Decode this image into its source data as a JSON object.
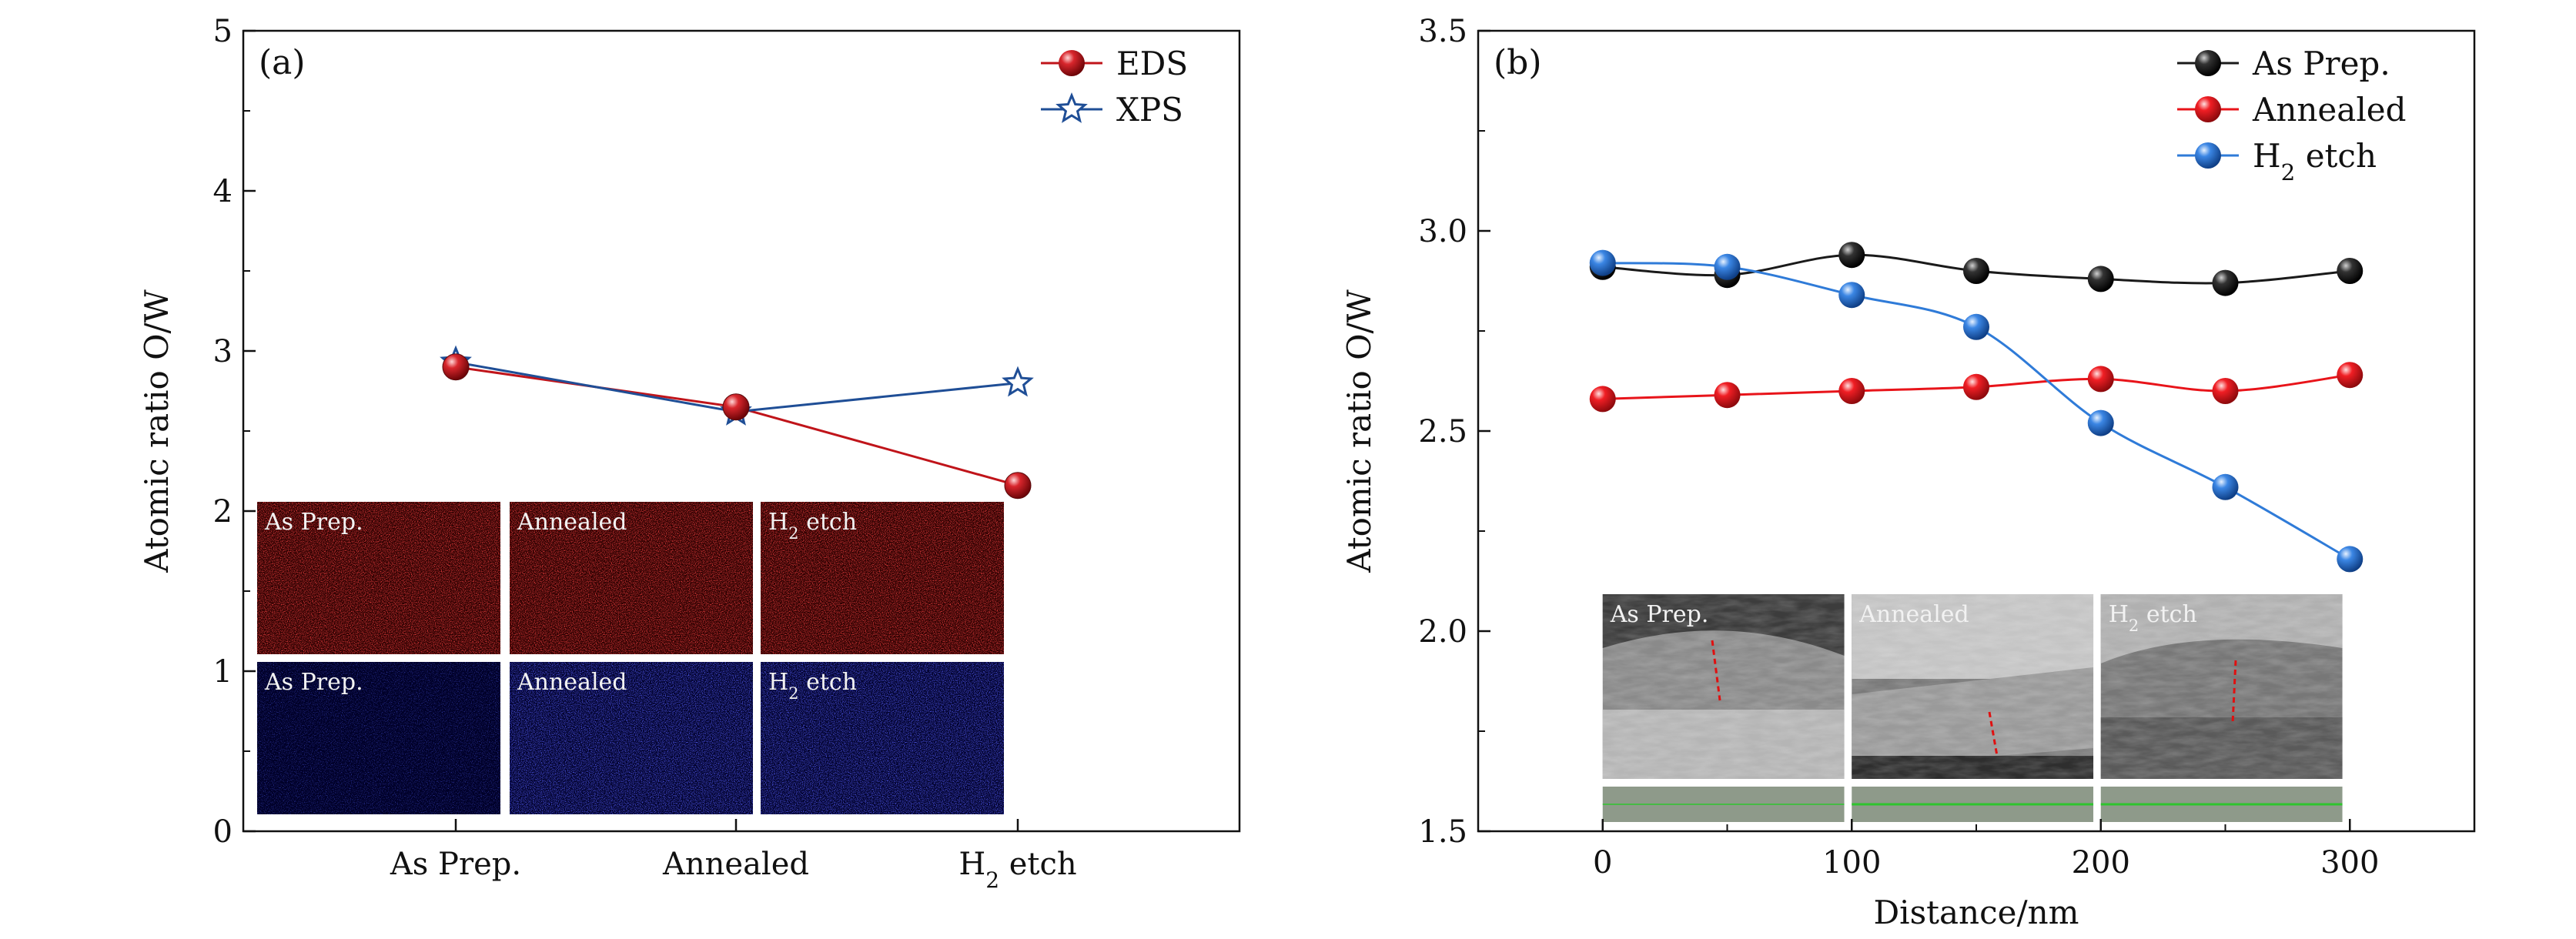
{
  "chart_data": [
    {
      "type": "line",
      "panel_tag": "(a)",
      "x_kind": "category",
      "categories": [
        "As Prep.",
        "Annealed",
        "H2 etch"
      ],
      "category_labels": [
        {
          "main": "As Prep.",
          "sub": "",
          "tail": ""
        },
        {
          "main": "Annealed",
          "sub": "",
          "tail": ""
        },
        {
          "main": "H",
          "sub": "2",
          "tail": " etch"
        }
      ],
      "xlabel": "",
      "ylabel": "Atomic ratio O/W",
      "ylim": [
        0,
        5
      ],
      "yticks": [
        0,
        1,
        2,
        3,
        4,
        5
      ],
      "grid": false,
      "legend_position": "top-right",
      "series": [
        {
          "name": "EDS",
          "marker": "sphere",
          "color": "#c0141a",
          "values": [
            2.9,
            2.65,
            2.16
          ]
        },
        {
          "name": "XPS",
          "marker": "star",
          "color": "#1f4e96",
          "values": [
            2.93,
            2.62,
            2.8
          ]
        }
      ],
      "insets": {
        "rows": [
          {
            "color": "red",
            "labels": [
              {
                "main": "As Prep.",
                "sub": "",
                "tail": ""
              },
              {
                "main": "Annealed",
                "sub": "",
                "tail": ""
              },
              {
                "main": "H",
                "sub": "2",
                "tail": " etch"
              }
            ]
          },
          {
            "color": "blue",
            "labels": [
              {
                "main": "As Prep.",
                "sub": "",
                "tail": ""
              },
              {
                "main": "Annealed",
                "sub": "",
                "tail": ""
              },
              {
                "main": "H",
                "sub": "2",
                "tail": " etch"
              }
            ]
          }
        ]
      }
    },
    {
      "type": "line",
      "panel_tag": "(b)",
      "x_kind": "numeric",
      "xlabel": "Distance/nm",
      "ylabel": "Atomic ratio O/W",
      "xlim": [
        -50,
        350
      ],
      "xticks": [
        0,
        100,
        200,
        300
      ],
      "ylim": [
        1.5,
        3.5
      ],
      "yticks": [
        1.5,
        2.0,
        2.5,
        3.0,
        3.5
      ],
      "ytick_labels": [
        "1.5",
        "2.0",
        "2.5",
        "3.0",
        "3.5"
      ],
      "grid": false,
      "legend_position": "top-right",
      "x": [
        0,
        50,
        100,
        150,
        200,
        250,
        300
      ],
      "series": [
        {
          "name": "As Prep.",
          "label": {
            "main": "As Prep.",
            "sub": "",
            "tail": ""
          },
          "marker": "sphere",
          "color": "#1a1a1a",
          "values": [
            2.91,
            2.89,
            2.94,
            2.9,
            2.88,
            2.87,
            2.9
          ]
        },
        {
          "name": "Annealed",
          "label": {
            "main": "Annealed",
            "sub": "",
            "tail": ""
          },
          "marker": "sphere",
          "color": "#e8141a",
          "values": [
            2.58,
            2.59,
            2.6,
            2.61,
            2.63,
            2.6,
            2.64
          ]
        },
        {
          "name": "H2 etch",
          "label": {
            "main": "H",
            "sub": "2",
            "tail": " etch"
          },
          "marker": "sphere",
          "color": "#2f7bd8",
          "values": [
            2.92,
            2.91,
            2.84,
            2.76,
            2.52,
            2.36,
            2.18
          ]
        }
      ],
      "insets": {
        "labels": [
          {
            "main": "As Prep.",
            "sub": "",
            "tail": ""
          },
          {
            "main": "Annealed",
            "sub": "",
            "tail": ""
          },
          {
            "main": "H",
            "sub": "2",
            "tail": " etch"
          }
        ]
      }
    }
  ]
}
